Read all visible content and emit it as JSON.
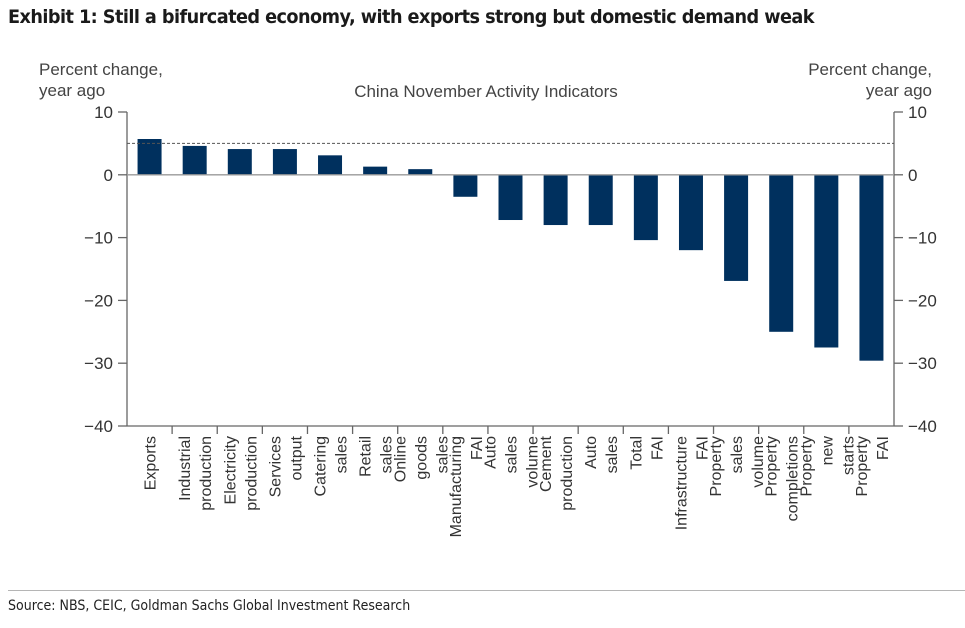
{
  "exhibit": {
    "title": "Exhibit 1: Still a bifurcated economy, with exports strong but domestic demand weak",
    "source": "Source: NBS, CEIC, Goldman Sachs Global Investment Research"
  },
  "chart_data": {
    "type": "bar",
    "title": "China November Activity Indicators",
    "ylabel_left": [
      "Percent change,",
      "year ago"
    ],
    "ylabel_right": [
      "Percent change,",
      "year ago"
    ],
    "xlabel": "",
    "ylim": [
      -40,
      10
    ],
    "yticks": [
      10,
      0,
      -10,
      -20,
      -30,
      -40
    ],
    "ytick_labels": [
      "10",
      "0",
      "−10",
      "−20",
      "−30",
      "−40"
    ],
    "reference_line": {
      "value": 5,
      "style": "dashed"
    },
    "bar_color": "#00305e",
    "grid": false,
    "legend": "none",
    "categories": [
      [
        "Exports"
      ],
      [
        "Industrial",
        "production"
      ],
      [
        "Electricity",
        "production"
      ],
      [
        "Services",
        "output"
      ],
      [
        "Catering",
        "sales"
      ],
      [
        "Retail",
        "sales"
      ],
      [
        "Online",
        "goods",
        "sales"
      ],
      [
        "Manufacturing",
        "FAI"
      ],
      [
        "Auto",
        "sales",
        "volume"
      ],
      [
        "Cement",
        "production"
      ],
      [
        "Auto",
        "sales"
      ],
      [
        "Total",
        "FAI"
      ],
      [
        "Infrastructure",
        "FAI"
      ],
      [
        "Property",
        "sales",
        "volume"
      ],
      [
        "Property",
        "completions"
      ],
      [
        "Property",
        "new",
        "starts"
      ],
      [
        "Property",
        "FAI"
      ]
    ],
    "values": [
      5.7,
      4.6,
      4.1,
      4.1,
      3.1,
      1.3,
      0.9,
      -3.5,
      -7.2,
      -8.0,
      -8.0,
      -10.4,
      -12.0,
      -16.9,
      -25.0,
      -27.5,
      -29.6
    ]
  }
}
